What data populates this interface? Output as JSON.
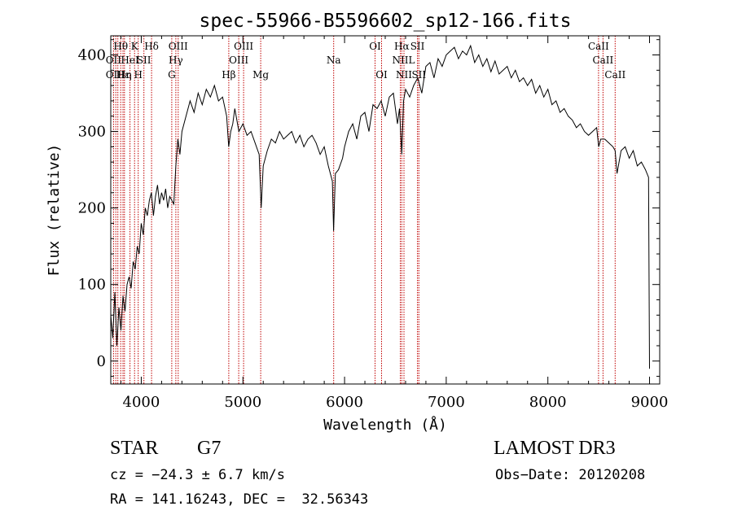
{
  "chart_data": {
    "type": "line",
    "title": "spec-55966-B5596602_sp12-166.fits",
    "xlabel": "Wavelength (Å)",
    "ylabel": "Flux (relative)",
    "xlim": [
      3700,
      9100
    ],
    "ylim": [
      -30,
      425
    ],
    "xticks": [
      4000,
      5000,
      6000,
      7000,
      8000,
      9000
    ],
    "yticks": [
      0,
      100,
      200,
      300,
      400
    ],
    "grid": false,
    "series": [
      {
        "x": [
          3700,
          3720,
          3740,
          3760,
          3780,
          3800,
          3820,
          3840,
          3860,
          3880,
          3900,
          3920,
          3940,
          3960,
          3980,
          4000,
          4020,
          4040,
          4060,
          4080,
          4100,
          4120,
          4140,
          4160,
          4180,
          4200,
          4220,
          4240,
          4260,
          4280,
          4300,
          4320,
          4340,
          4360,
          4380,
          4400,
          4440,
          4480,
          4520,
          4560,
          4600,
          4640,
          4680,
          4720,
          4760,
          4800,
          4840,
          4860,
          4880,
          4900,
          4920,
          4960,
          5000,
          5040,
          5080,
          5120,
          5160,
          5180,
          5200,
          5240,
          5280,
          5320,
          5360,
          5400,
          5440,
          5480,
          5520,
          5560,
          5600,
          5640,
          5680,
          5720,
          5760,
          5800,
          5840,
          5880,
          5892,
          5910,
          5940,
          5980,
          6000,
          6040,
          6080,
          6120,
          6160,
          6200,
          6240,
          6280,
          6320,
          6360,
          6400,
          6440,
          6480,
          6520,
          6540,
          6563,
          6580,
          6600,
          6640,
          6680,
          6720,
          6760,
          6800,
          6840,
          6880,
          6920,
          6960,
          7000,
          7040,
          7080,
          7120,
          7160,
          7200,
          7240,
          7280,
          7320,
          7360,
          7400,
          7440,
          7480,
          7520,
          7560,
          7600,
          7640,
          7680,
          7720,
          7760,
          7800,
          7840,
          7880,
          7920,
          7960,
          8000,
          8040,
          8080,
          8120,
          8160,
          8200,
          8240,
          8280,
          8320,
          8360,
          8400,
          8440,
          8480,
          8500,
          8520,
          8560,
          8600,
          8640,
          8662,
          8680,
          8720,
          8760,
          8800,
          8840,
          8880,
          8920,
          8960,
          8990,
          9000
        ],
        "y": [
          60,
          30,
          90,
          20,
          70,
          40,
          85,
          65,
          100,
          110,
          95,
          130,
          120,
          150,
          140,
          180,
          165,
          200,
          190,
          210,
          220,
          190,
          215,
          230,
          205,
          220,
          210,
          225,
          200,
          215,
          210,
          205,
          255,
          290,
          270,
          300,
          320,
          340,
          325,
          350,
          335,
          355,
          345,
          360,
          340,
          345,
          320,
          280,
          300,
          310,
          330,
          300,
          310,
          295,
          300,
          285,
          270,
          200,
          255,
          275,
          290,
          285,
          300,
          290,
          295,
          300,
          285,
          295,
          280,
          290,
          295,
          285,
          270,
          280,
          255,
          235,
          170,
          245,
          250,
          265,
          280,
          300,
          310,
          290,
          320,
          325,
          300,
          335,
          330,
          340,
          320,
          345,
          350,
          310,
          330,
          270,
          340,
          355,
          345,
          360,
          370,
          350,
          385,
          390,
          370,
          395,
          385,
          400,
          405,
          410,
          395,
          405,
          400,
          412,
          390,
          400,
          385,
          395,
          378,
          392,
          375,
          380,
          385,
          370,
          380,
          365,
          370,
          360,
          368,
          350,
          360,
          345,
          355,
          335,
          340,
          325,
          330,
          320,
          315,
          305,
          310,
          300,
          295,
          300,
          305,
          280,
          290,
          290,
          285,
          280,
          275,
          245,
          275,
          280,
          265,
          275,
          255,
          260,
          250,
          240,
          -10
        ]
      }
    ],
    "lines": {
      "wavelengths": [
        3727,
        3750,
        3770,
        3798,
        3820,
        3835,
        3889,
        3934,
        3970,
        4026,
        4101,
        4300,
        4340,
        4363,
        4861,
        4959,
        5007,
        5175,
        5893,
        6300,
        6364,
        6548,
        6563,
        6584,
        6717,
        6731,
        8498,
        8542,
        8662
      ],
      "labels": [
        {
          "text": "Hθ",
          "wavelength": 3798,
          "row": 1
        },
        {
          "text": "K",
          "wavelength": 3934,
          "row": 1
        },
        {
          "text": "Hδ",
          "wavelength": 4101,
          "row": 1
        },
        {
          "text": "OIII",
          "wavelength": 4363,
          "row": 1
        },
        {
          "text": "OIII",
          "wavelength": 5007,
          "row": 1
        },
        {
          "text": "OI",
          "wavelength": 6300,
          "row": 1
        },
        {
          "text": "Hα",
          "wavelength": 6563,
          "row": 1
        },
        {
          "text": "SII",
          "wavelength": 6717,
          "row": 1
        },
        {
          "text": "CaII",
          "wavelength": 8498,
          "row": 1
        },
        {
          "text": "OII",
          "wavelength": 3727,
          "row": 2
        },
        {
          "text": "HeI",
          "wavelength": 3889,
          "row": 2
        },
        {
          "text": "SII",
          "wavelength": 4026,
          "row": 2
        },
        {
          "text": "Hγ",
          "wavelength": 4340,
          "row": 2
        },
        {
          "text": "OIII",
          "wavelength": 4959,
          "row": 2
        },
        {
          "text": "Na",
          "wavelength": 5893,
          "row": 2
        },
        {
          "text": "NII",
          "wavelength": 6548,
          "row": 2
        },
        {
          "text": "L",
          "wavelength": 6660,
          "row": 2
        },
        {
          "text": "CaII",
          "wavelength": 8542,
          "row": 2
        },
        {
          "text": "OII",
          "wavelength": 3727,
          "row": 3
        },
        {
          "text": "Hε",
          "wavelength": 3820,
          "row": 3
        },
        {
          "text": "Hη",
          "wavelength": 3835,
          "row": 3
        },
        {
          "text": "H",
          "wavelength": 3970,
          "row": 3
        },
        {
          "text": "G",
          "wavelength": 4300,
          "row": 3
        },
        {
          "text": "Hβ",
          "wavelength": 4861,
          "row": 3
        },
        {
          "text": "Mg",
          "wavelength": 5175,
          "row": 3
        },
        {
          "text": "OI",
          "wavelength": 6364,
          "row": 3
        },
        {
          "text": "NII",
          "wavelength": 6584,
          "row": 3
        },
        {
          "text": "SII",
          "wavelength": 6731,
          "row": 3
        },
        {
          "text": "CaII",
          "wavelength": 8662,
          "row": 3
        }
      ]
    }
  },
  "info": {
    "class": "STAR",
    "subclass": "G7",
    "survey": "LAMOST DR3",
    "cz": "cz = −24.3 ± 6.7 km/s",
    "obs_date": "Obs−Date: 20120208",
    "coords": "RA = 141.16243, DEC =  32.56343"
  },
  "colors": {
    "line_marker": "#c00000",
    "spectrum": "#000000"
  }
}
